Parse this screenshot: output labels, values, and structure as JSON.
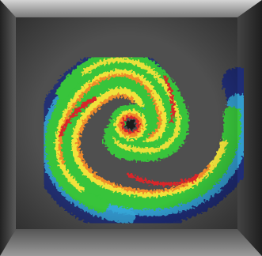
{
  "image": {
    "subject": "radar-hurricane",
    "colors": {
      "frame_dark": "#2c2c2c",
      "frame_mid": "#6b6b6b",
      "frame_light": "#b8b8b8",
      "radar_bg": "#4f4f4f",
      "weak": "#1d2c78",
      "light": "#35a8d8",
      "moderate": "#37c43a",
      "heavy": "#f1e23a",
      "intense": "#f08a2a",
      "extreme": "#d8262a",
      "eye": "#1a1a1a"
    }
  }
}
